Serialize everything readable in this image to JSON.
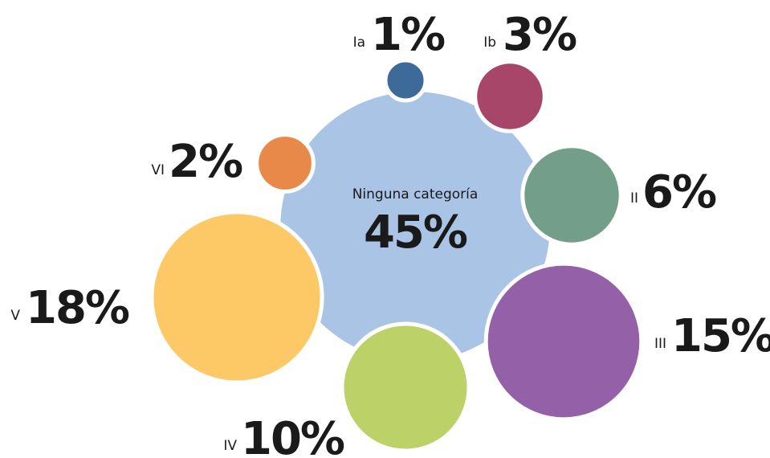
{
  "chart_data": {
    "type": "bubble",
    "categories": [
      "Ninguna categoría",
      "Ia",
      "Ib",
      "II",
      "III",
      "IV",
      "V",
      "VI"
    ],
    "values": [
      45,
      1,
      3,
      6,
      15,
      10,
      18,
      2
    ],
    "value_labels": [
      "45%",
      "1%",
      "3%",
      "6%",
      "15%",
      "10%",
      "18%",
      "2%"
    ],
    "colors": [
      "#aac4e6",
      "#3d6a99",
      "#a8466a",
      "#739e89",
      "#9461a8",
      "#bcd167",
      "#fdc966",
      "#e8894a"
    ]
  }
}
